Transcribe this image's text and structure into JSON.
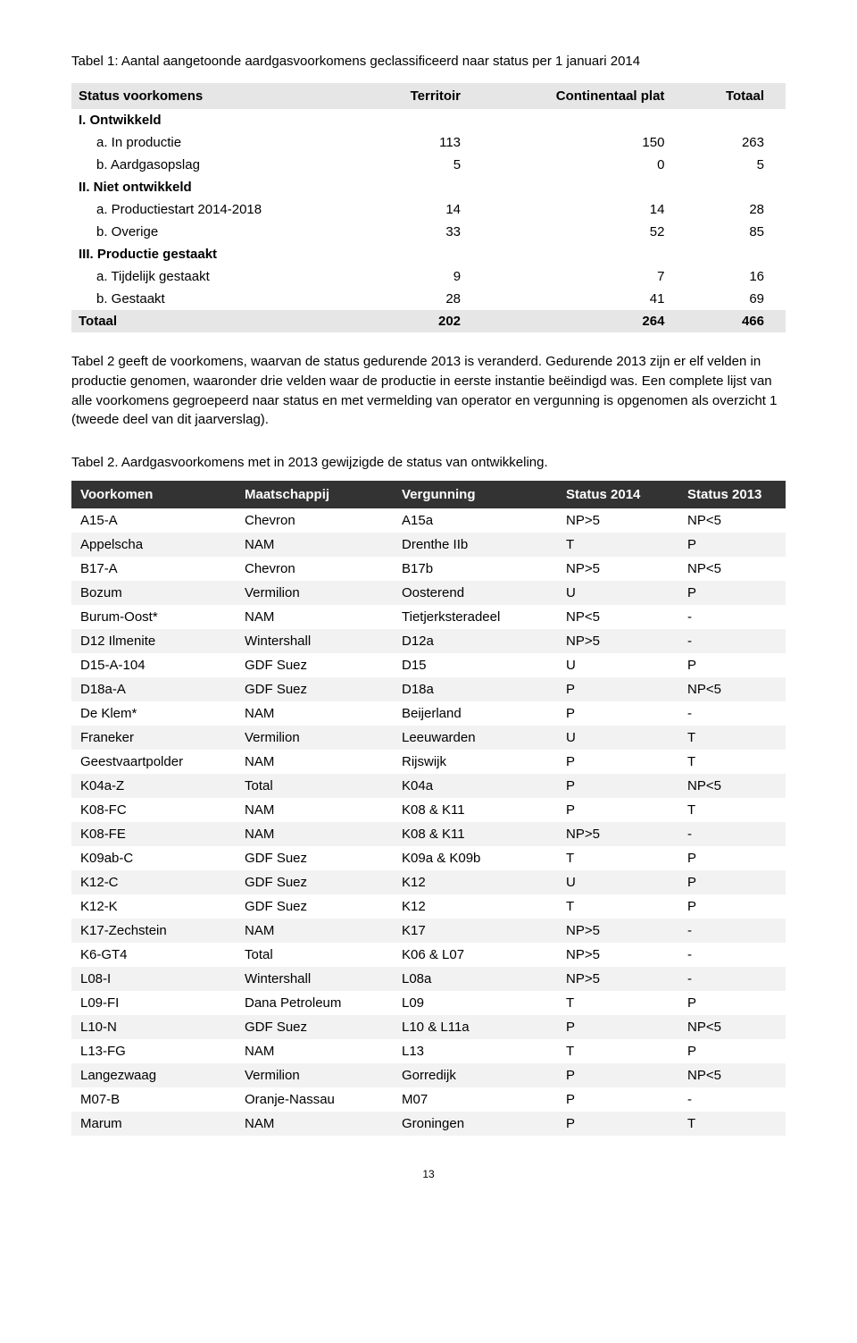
{
  "table1": {
    "caption": "Tabel 1: Aantal aangetoonde aardgasvoorkomens geclassificeerd naar status per 1 januari 2014",
    "headers": {
      "col0": "Status voorkomens",
      "col1": "Territoir",
      "col2": "Continentaal plat",
      "col3": "Totaal"
    },
    "sec1": "I. Ontwikkeld",
    "r1a": {
      "label": "a.  In productie",
      "v1": "113",
      "v2": "150",
      "v3": "263"
    },
    "r1b": {
      "label": "b.  Aardgasopslag",
      "v1": "5",
      "v2": "0",
      "v3": "5"
    },
    "sec2": "II. Niet ontwikkeld",
    "r2a": {
      "label": "a.  Productiestart 2014-2018",
      "v1": "14",
      "v2": "14",
      "v3": "28"
    },
    "r2b": {
      "label": "b.  Overige",
      "v1": "33",
      "v2": "52",
      "v3": "85"
    },
    "sec3": "III. Productie gestaakt",
    "r3a": {
      "label": "a.  Tijdelijk gestaakt",
      "v1": "9",
      "v2": "7",
      "v3": "16"
    },
    "r3b": {
      "label": "b.  Gestaakt",
      "v1": "28",
      "v2": "41",
      "v3": "69"
    },
    "total": {
      "label": "Totaal",
      "v1": "202",
      "v2": "264",
      "v3": "466"
    }
  },
  "paragraph": "Tabel 2 geeft de voorkomens, waarvan de status gedurende 2013 is veranderd. Gedurende 2013 zijn er elf velden in productie genomen, waaronder drie velden waar de productie in eerste instantie beëindigd was. Een complete lijst van alle voorkomens gegroepeerd naar status en met vermelding van operator en vergunning is opgenomen als overzicht 1 (tweede deel van dit jaarverslag).",
  "table2": {
    "caption": "Tabel 2. Aardgasvoorkomens met in 2013 gewijzigde de status van ontwikkeling.",
    "headers": {
      "c0": "Voorkomen",
      "c1": "Maatschappij",
      "c2": "Vergunning",
      "c3": "Status 2014",
      "c4": "Status 2013"
    },
    "rows": [
      {
        "c0": "A15-A",
        "c1": "Chevron",
        "c2": "A15a",
        "c3": "NP>5",
        "c4": "NP<5"
      },
      {
        "c0": "Appelscha",
        "c1": "NAM",
        "c2": "Drenthe IIb",
        "c3": "T",
        "c4": "P"
      },
      {
        "c0": "B17-A",
        "c1": "Chevron",
        "c2": "B17b",
        "c3": "NP>5",
        "c4": "NP<5"
      },
      {
        "c0": "Bozum",
        "c1": "Vermilion",
        "c2": "Oosterend",
        "c3": "U",
        "c4": "P"
      },
      {
        "c0": "Burum-Oost*",
        "c1": "NAM",
        "c2": "Tietjerksteradeel",
        "c3": "NP<5",
        "c4": "-"
      },
      {
        "c0": "D12 Ilmenite",
        "c1": "Wintershall",
        "c2": "D12a",
        "c3": "NP>5",
        "c4": "-"
      },
      {
        "c0": "D15-A-104",
        "c1": "GDF Suez",
        "c2": "D15",
        "c3": "U",
        "c4": "P"
      },
      {
        "c0": "D18a-A",
        "c1": "GDF Suez",
        "c2": "D18a",
        "c3": "P",
        "c4": "NP<5"
      },
      {
        "c0": "De Klem*",
        "c1": "NAM",
        "c2": "Beijerland",
        "c3": "P",
        "c4": "-"
      },
      {
        "c0": "Franeker",
        "c1": "Vermilion",
        "c2": "Leeuwarden",
        "c3": "U",
        "c4": "T"
      },
      {
        "c0": "Geestvaartpolder",
        "c1": "NAM",
        "c2": "Rijswijk",
        "c3": "P",
        "c4": "T"
      },
      {
        "c0": "K04a-Z",
        "c1": "Total",
        "c2": "K04a",
        "c3": "P",
        "c4": "NP<5"
      },
      {
        "c0": "K08-FC",
        "c1": "NAM",
        "c2": "K08 & K11",
        "c3": "P",
        "c4": "T"
      },
      {
        "c0": "K08-FE",
        "c1": "NAM",
        "c2": "K08 & K11",
        "c3": "NP>5",
        "c4": "-"
      },
      {
        "c0": "K09ab-C",
        "c1": "GDF Suez",
        "c2": "K09a & K09b",
        "c3": "T",
        "c4": "P"
      },
      {
        "c0": "K12-C",
        "c1": "GDF Suez",
        "c2": "K12",
        "c3": "U",
        "c4": "P"
      },
      {
        "c0": "K12-K",
        "c1": "GDF Suez",
        "c2": "K12",
        "c3": "T",
        "c4": "P"
      },
      {
        "c0": "K17-Zechstein",
        "c1": "NAM",
        "c2": "K17",
        "c3": "NP>5",
        "c4": "-"
      },
      {
        "c0": "K6-GT4",
        "c1": "Total",
        "c2": "K06 & L07",
        "c3": "NP>5",
        "c4": "-"
      },
      {
        "c0": "L08-I",
        "c1": "Wintershall",
        "c2": "L08a",
        "c3": "NP>5",
        "c4": "-"
      },
      {
        "c0": "L09-FI",
        "c1": "Dana Petroleum",
        "c2": "L09",
        "c3": "T",
        "c4": "P"
      },
      {
        "c0": "L10-N",
        "c1": "GDF Suez",
        "c2": "L10 & L11a",
        "c3": "P",
        "c4": "NP<5"
      },
      {
        "c0": "L13-FG",
        "c1": "NAM",
        "c2": "L13",
        "c3": "T",
        "c4": "P"
      },
      {
        "c0": "Langezwaag",
        "c1": "Vermilion",
        "c2": "Gorredijk",
        "c3": "P",
        "c4": "NP<5"
      },
      {
        "c0": "M07-B",
        "c1": "Oranje-Nassau",
        "c2": "M07",
        "c3": "P",
        "c4": "-"
      },
      {
        "c0": "Marum",
        "c1": "NAM",
        "c2": "Groningen",
        "c3": "P",
        "c4": "T"
      }
    ]
  },
  "pageNumber": "13"
}
